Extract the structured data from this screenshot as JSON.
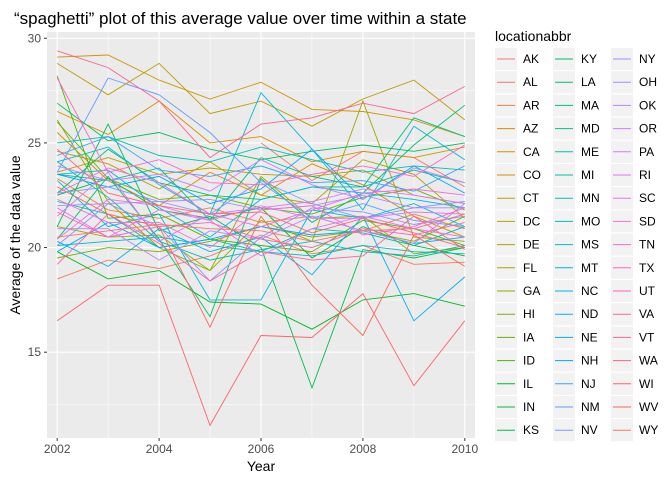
{
  "chart_data": {
    "type": "line",
    "title": "“spaghetti” plot of this average value over time within a state",
    "xlabel": "Year",
    "ylabel": "Average of the data value",
    "legend_title": "locationabbr",
    "legend_placement": "right",
    "grid": true,
    "xlim": [
      2001.8,
      2010.2
    ],
    "ylim": [
      10.9,
      30.3
    ],
    "x_ticks": [
      2002,
      2004,
      2006,
      2008,
      2010
    ],
    "y_ticks": [
      15,
      20,
      25,
      30
    ],
    "x_tick_labels": [
      "2002",
      "2004",
      "2006",
      "2008",
      "2010"
    ],
    "y_tick_labels": [
      "15",
      "20",
      "25",
      "30"
    ],
    "x": [
      2002,
      2003,
      2004,
      2005,
      2006,
      2007,
      2008,
      2009,
      2010
    ],
    "series": [
      {
        "name": "AK",
        "color": "#F8766D",
        "values": [
          null,
          null,
          null,
          null,
          25.0,
          23.2,
          24.6,
          24.3,
          22.9
        ]
      },
      {
        "name": "AL",
        "color": "#F37B59",
        "values": [
          18.5,
          19.4,
          19.0,
          19.6,
          20.6,
          19.7,
          20.1,
          19.2,
          19.3
        ]
      },
      {
        "name": "AR",
        "color": "#ED8141",
        "values": [
          23.3,
          21.8,
          21.4,
          21.9,
          21.2,
          21.5,
          20.8,
          21.6,
          20.9
        ]
      },
      {
        "name": "AZ",
        "color": "#E58700",
        "values": [
          25.5,
          23.2,
          22.0,
          23.6,
          22.5,
          24.0,
          23.0,
          21.5,
          20.5
        ]
      },
      {
        "name": "CA",
        "color": "#DC8D00",
        "values": [
          26.5,
          25.4,
          27.0,
          25.0,
          25.3,
          24.1,
          24.6,
          24.3,
          24.8
        ]
      },
      {
        "name": "CO",
        "color": "#D29300",
        "values": [
          29.1,
          29.2,
          28.0,
          27.1,
          27.9,
          26.6,
          26.5,
          26.1,
          25.3
        ]
      },
      {
        "name": "CT",
        "color": "#C79800",
        "values": [
          23.6,
          24.3,
          23.5,
          23.8,
          23.5,
          23.4,
          23.7,
          22.5,
          22.1
        ]
      },
      {
        "name": "DC",
        "color": "#BA9E00",
        "values": [
          28.8,
          27.3,
          28.8,
          26.4,
          27.0,
          25.8,
          27.1,
          28.0,
          26.1
        ]
      },
      {
        "name": "DE",
        "color": "#ADA200",
        "values": [
          24.6,
          24.0,
          22.8,
          24.1,
          22.5,
          22.1,
          24.2,
          23.5,
          21.4
        ]
      },
      {
        "name": "FL",
        "color": "#9EA700",
        "values": [
          21.0,
          20.5,
          20.6,
          18.9,
          21.3,
          20.3,
          27.0,
          20.5,
          20.3
        ]
      },
      {
        "name": "GA",
        "color": "#8EAB00",
        "values": [
          26.1,
          22.2,
          20.0,
          18.9,
          23.4,
          21.4,
          21.5,
          19.7,
          20.0
        ]
      },
      {
        "name": "HI",
        "color": "#7CAE00",
        "values": [
          19.5,
          20.0,
          19.8,
          20.3,
          21.0,
          20.5,
          20.8,
          20.3,
          21.5
        ]
      },
      {
        "name": "IA",
        "color": "#66B200",
        "values": [
          26.0,
          23.3,
          22.3,
          22.5,
          21.9,
          21.6,
          22.4,
          22.8,
          21.8
        ]
      },
      {
        "name": "ID",
        "color": "#49B500",
        "values": [
          28.2,
          21.4,
          21.6,
          20.4,
          20.1,
          19.8,
          21.3,
          20.9,
          20.1
        ]
      },
      {
        "name": "IL",
        "color": "#00B81F",
        "values": [
          19.8,
          18.5,
          18.9,
          17.4,
          17.3,
          16.1,
          17.5,
          17.8,
          17.2
        ]
      },
      {
        "name": "IN",
        "color": "#00BA38",
        "values": [
          22.5,
          23.3,
          21.8,
          21.4,
          21.9,
          19.5,
          21.0,
          20.1,
          19.6
        ]
      },
      {
        "name": "KS",
        "color": "#00BC4F",
        "values": [
          21.0,
          25.9,
          20.8,
          21.5,
          20.0,
          13.3,
          19.9,
          19.5,
          20.0
        ]
      },
      {
        "name": "KY",
        "color": "#00BD61",
        "values": [
          26.9,
          25.1,
          25.5,
          24.7,
          24.2,
          24.6,
          24.9,
          24.6,
          25.0
        ]
      },
      {
        "name": "LA",
        "color": "#00BF72",
        "values": [
          20.4,
          23.4,
          20.4,
          16.7,
          23.3,
          21.2,
          22.6,
          24.9,
          26.8
        ]
      },
      {
        "name": "MA",
        "color": "#00C081",
        "values": [
          22.6,
          24.7,
          23.1,
          22.5,
          22.3,
          22.9,
          22.9,
          26.2,
          25.3
        ]
      },
      {
        "name": "MD",
        "color": "#00C08E",
        "values": [
          23.5,
          23.2,
          23.8,
          21.3,
          24.3,
          23.4,
          22.9,
          23.7,
          23.1
        ]
      },
      {
        "name": "ME",
        "color": "#00C19C",
        "values": [
          22.2,
          21.6,
          20.0,
          20.4,
          19.8,
          20.9,
          20.7,
          20.1,
          21.0
        ]
      },
      {
        "name": "MI",
        "color": "#00C0A9",
        "values": [
          24.1,
          22.4,
          20.3,
          19.4,
          19.9,
          20.3,
          19.8,
          19.6,
          20.1
        ]
      },
      {
        "name": "MN",
        "color": "#00BFB7",
        "values": [
          25.0,
          25.3,
          24.4,
          24.1,
          24.8,
          24.2,
          23.6,
          23.9,
          23.7
        ]
      },
      {
        "name": "MO",
        "color": "#00BDC4",
        "values": [
          20.1,
          20.3,
          20.5,
          20.1,
          19.8,
          19.6,
          20.1,
          19.8,
          19.7
        ]
      },
      {
        "name": "MS",
        "color": "#00BBD0",
        "values": [
          24.1,
          24.8,
          23.0,
          21.6,
          27.4,
          24.7,
          21.8,
          25.8,
          24.2
        ]
      },
      {
        "name": "MT",
        "color": "#00B8DC",
        "values": [
          23.2,
          21.0,
          21.6,
          17.5,
          17.5,
          21.8,
          21.4,
          22.1,
          21.0
        ]
      },
      {
        "name": "NC",
        "color": "#00B4E7",
        "values": [
          23.5,
          23.7,
          21.9,
          20.5,
          22.3,
          22.9,
          22.6,
          22.3,
          21.9
        ]
      },
      {
        "name": "ND",
        "color": "#00B0F0",
        "values": [
          20.3,
          19.1,
          20.9,
          19.8,
          20.5,
          18.7,
          21.5,
          16.5,
          18.6
        ]
      },
      {
        "name": "NE",
        "color": "#00ABF9",
        "values": [
          19.8,
          21.2,
          20.0,
          20.4,
          21.0,
          20.6,
          20.8,
          20.2,
          20.5
        ]
      },
      {
        "name": "NH",
        "color": "#00A5FF",
        "values": [
          23.5,
          22.9,
          23.4,
          22.1,
          22.8,
          24.7,
          22.3,
          23.9,
          22.6
        ]
      },
      {
        "name": "NJ",
        "color": "#35A2FF",
        "values": [
          24.4,
          25.3,
          23.7,
          23.4,
          23.9,
          23.1,
          23.2,
          22.7,
          23.9
        ]
      },
      {
        "name": "NM",
        "color": "#619CFF",
        "values": [
          23.6,
          28.1,
          27.3,
          25.5,
          23.1,
          21.4,
          22.1,
          21.3,
          21.0
        ]
      },
      {
        "name": "NV",
        "color": "#7F96FF",
        "values": [
          22.6,
          22.9,
          22.2,
          21.6,
          23.2,
          22.1,
          21.4,
          21.9,
          22.2
        ]
      },
      {
        "name": "NY",
        "color": "#9590FF",
        "values": [
          20.1,
          22.1,
          21.0,
          18.4,
          20.5,
          21.9,
          21.7,
          21.1,
          21.5
        ]
      },
      {
        "name": "OH",
        "color": "#A98AFF",
        "values": [
          22.0,
          22.1,
          22.2,
          22.3,
          21.8,
          22.0,
          22.5,
          21.9,
          21.9
        ]
      },
      {
        "name": "OK",
        "color": "#BA84FF",
        "values": [
          20.9,
          20.9,
          19.4,
          20.8,
          20.4,
          21.5,
          20.8,
          20.2,
          22.1
        ]
      },
      {
        "name": "OR",
        "color": "#C97EFF",
        "values": [
          23.9,
          23.2,
          23.5,
          22.7,
          24.2,
          23.0,
          22.3,
          23.8,
          23.1
        ]
      },
      {
        "name": "PA",
        "color": "#D679FF",
        "values": [
          21.5,
          23.6,
          20.3,
          21.6,
          21.9,
          22.2,
          22.8,
          22.5,
          22.1
        ]
      },
      {
        "name": "RI",
        "color": "#E276F5",
        "values": [
          21.9,
          20.5,
          21.8,
          21.3,
          22.0,
          21.4,
          21.4,
          21.7,
          21.6
        ]
      },
      {
        "name": "SC",
        "color": "#EB72EB",
        "values": [
          20.4,
          22.3,
          22.0,
          21.3,
          19.6,
          20.9,
          21.5,
          20.9,
          20.5
        ]
      },
      {
        "name": "SD",
        "color": "#F36EE0",
        "values": [
          22.6,
          23.8,
          23.1,
          21.6,
          21.0,
          21.8,
          22.6,
          22.8,
          22.5
        ]
      },
      {
        "name": "TN",
        "color": "#F96AD3",
        "values": [
          22.3,
          21.2,
          21.2,
          20.0,
          21.8,
          22.0,
          20.6,
          21.0,
          21.9
        ]
      },
      {
        "name": "TX",
        "color": "#FD66C4",
        "values": [
          28.1,
          23.6,
          24.2,
          23.1,
          23.0,
          23.5,
          23.9,
          23.4,
          24.9
        ]
      },
      {
        "name": "UT",
        "color": "#FF63B5",
        "values": [
          21.7,
          20.5,
          21.0,
          21.2,
          20.4,
          20.0,
          20.9,
          20.6,
          21.2
        ]
      },
      {
        "name": "VA",
        "color": "#FF61A4",
        "values": [
          19.2,
          21.6,
          20.2,
          18.4,
          19.8,
          19.4,
          19.6,
          21.5,
          19.9
        ]
      },
      {
        "name": "VT",
        "color": "#FF6193",
        "values": [
          29.4,
          28.6,
          27.0,
          24.3,
          25.9,
          26.2,
          26.9,
          26.4,
          27.7
        ]
      },
      {
        "name": "WA",
        "color": "#FF6280",
        "values": [
          24.7,
          22.6,
          22.0,
          21.6,
          21.7,
          20.7,
          21.4,
          20.7,
          20.0
        ]
      },
      {
        "name": "WI",
        "color": "#FD646C",
        "values": [
          16.5,
          18.2,
          18.2,
          11.5,
          15.8,
          15.7,
          17.8,
          13.4,
          16.5
        ]
      },
      {
        "name": "WV",
        "color": "#FA6857",
        "values": [
          22.9,
          21.6,
          21.0,
          16.2,
          21.5,
          18.2,
          15.8,
          20.6,
          19.1
        ]
      },
      {
        "name": "WY",
        "color": "#F8766D",
        "values": [
          20.5,
          20.8,
          21.1,
          20.9,
          20.8,
          20.3,
          20.8,
          20.9,
          21.6
        ]
      }
    ]
  }
}
